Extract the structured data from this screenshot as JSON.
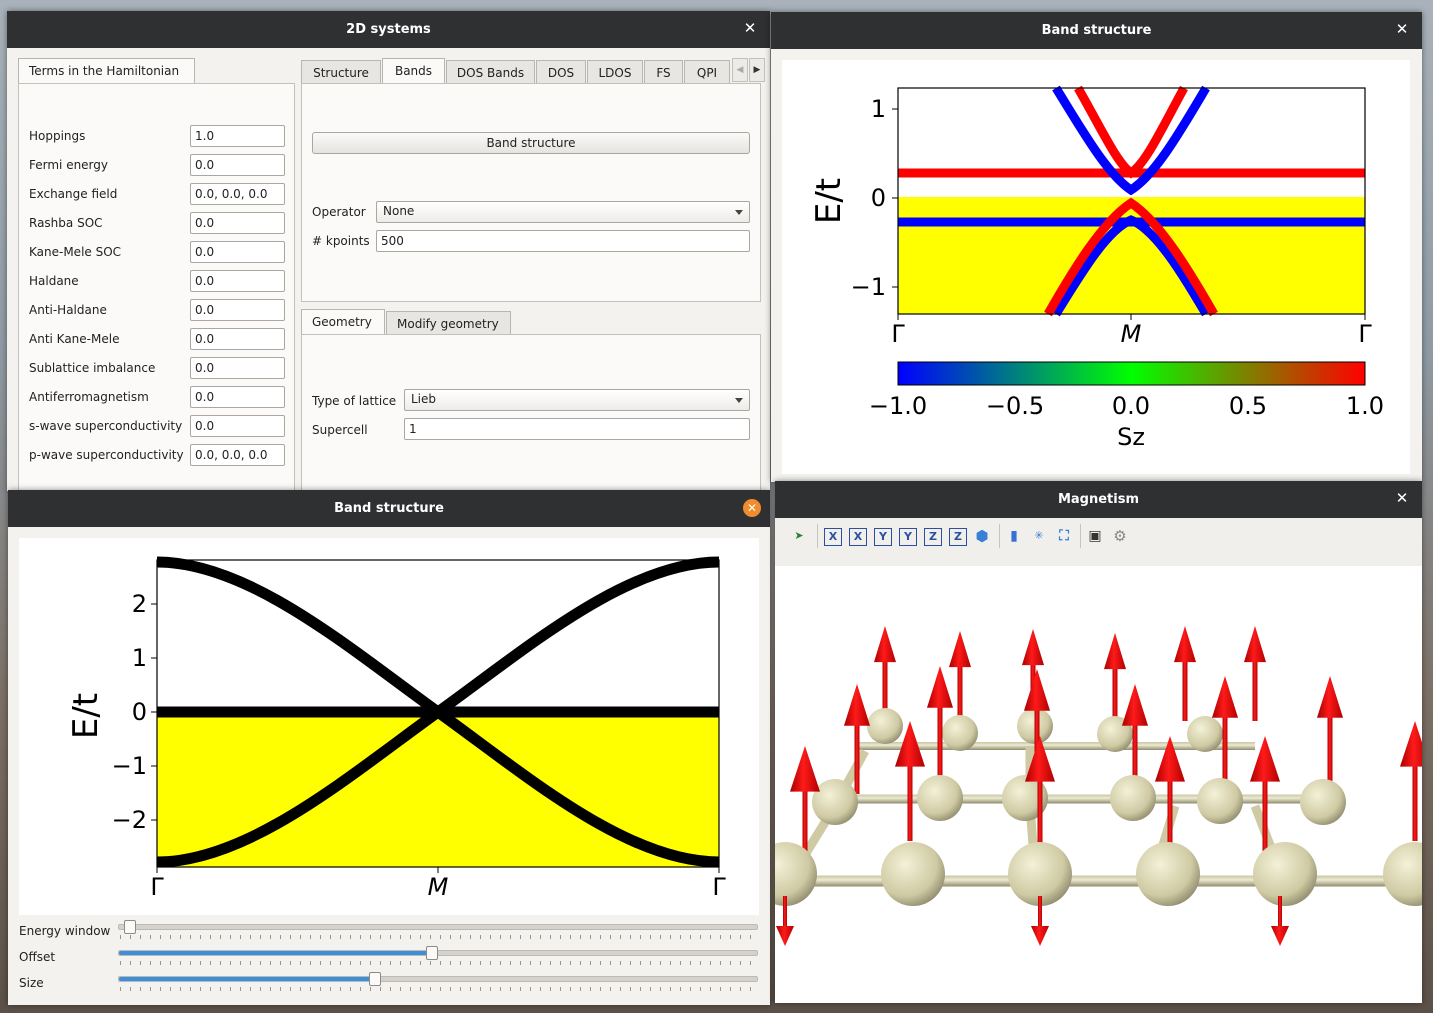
{
  "win_main": {
    "title": "2D systems",
    "left_tab": "Terms in the Hamiltonian",
    "params": [
      {
        "label": "Hoppings",
        "value": "1.0"
      },
      {
        "label": "Fermi energy",
        "value": "0.0"
      },
      {
        "label": "Exchange field",
        "value": "0.0, 0.0, 0.0"
      },
      {
        "label": "Rashba SOC",
        "value": "0.0"
      },
      {
        "label": "Kane-Mele SOC",
        "value": "0.0"
      },
      {
        "label": "Haldane",
        "value": "0.0"
      },
      {
        "label": "Anti-Haldane",
        "value": "0.0"
      },
      {
        "label": "Anti Kane-Mele",
        "value": "0.0"
      },
      {
        "label": "Sublattice imbalance",
        "value": "0.0"
      },
      {
        "label": "Antiferromagnetism",
        "value": "0.0"
      },
      {
        "label": "s-wave superconductivity",
        "value": "0.0"
      },
      {
        "label": "p-wave superconductivity",
        "value": "0.0, 0.0, 0.0"
      }
    ],
    "top_tabs": [
      "Structure",
      "Bands",
      "DOS Bands",
      "DOS",
      "LDOS",
      "FS",
      "QPI"
    ],
    "active_top_tab": "Bands",
    "band_button": "Band structure",
    "operator_label": "Operator",
    "operator_value": "None",
    "kpoints_label": "# kpoints",
    "kpoints_value": "500",
    "geo_tabs": [
      "Geometry",
      "Modify geometry"
    ],
    "lattice_label": "Type of lattice",
    "lattice_value": "Lieb",
    "supercell_label": "Supercell",
    "supercell_value": "1"
  },
  "win_band_right": {
    "title": "Band structure"
  },
  "win_band_left": {
    "title": "Band structure",
    "slider_energy_label": "Energy window",
    "slider_offset_label": "Offset",
    "slider_size_label": "Size",
    "slider_energy_value": 0.01,
    "slider_offset_value": 0.49,
    "slider_size_value": 0.4
  },
  "win_magnet": {
    "title": "Magnetism"
  },
  "colors": {
    "up": "#ff0000",
    "down": "#0000ff",
    "fill": "#ffff00",
    "arrow": "#ee0000",
    "atom": "#d9d5ae"
  },
  "chart_data": [
    {
      "type": "line",
      "title": "",
      "ylabel": "E/t",
      "xticks": [
        "Γ",
        "M",
        "Γ"
      ],
      "ylim": [
        -1.25,
        1.25
      ],
      "yticks": [
        -1,
        0,
        1
      ],
      "series": [
        {
          "name": "flat band spin-up",
          "y": 0.27,
          "sz": 1.0
        },
        {
          "name": "flat band spin-down",
          "y": -0.27,
          "sz": -1.0
        },
        {
          "name": "dispersive spin-up",
          "min_gap": 0.27,
          "sz": 1.0
        },
        {
          "name": "dispersive spin-down",
          "min_gap": 0.06,
          "sz": -1.0
        }
      ],
      "occupied_below": 0.0,
      "colorbar": {
        "label": "Sz",
        "ticks": [
          "−1.0",
          "−0.5",
          "0.0",
          "0.5",
          "1.0"
        ],
        "range": [
          -1.0,
          1.0
        ]
      }
    },
    {
      "type": "line",
      "title": "",
      "ylabel": "E/t",
      "xticks": [
        "Γ",
        "M",
        "Γ"
      ],
      "ylim": [
        -2.85,
        2.85
      ],
      "yticks": [
        "2",
        "1",
        "0",
        "−1",
        "−2"
      ],
      "series": [
        {
          "name": "upper band",
          "at_gamma": 2.83,
          "at_M": 0.0
        },
        {
          "name": "flat band",
          "y": 0.0
        },
        {
          "name": "lower band",
          "at_gamma": -2.83,
          "at_M": 0.0
        }
      ],
      "occupied_below": 0.0
    }
  ]
}
